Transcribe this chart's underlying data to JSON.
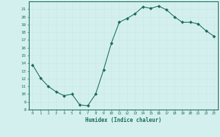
{
  "x": [
    0,
    1,
    2,
    3,
    4,
    5,
    6,
    7,
    8,
    9,
    10,
    11,
    12,
    13,
    14,
    15,
    16,
    17,
    18,
    19,
    20,
    21,
    22,
    23
  ],
  "y": [
    13.8,
    12.1,
    11.0,
    10.3,
    9.8,
    10.0,
    8.6,
    8.5,
    10.0,
    13.1,
    16.6,
    19.3,
    19.8,
    20.4,
    21.3,
    21.1,
    21.4,
    20.9,
    20.0,
    19.3,
    19.3,
    19.1,
    18.2,
    17.5
  ],
  "xlabel": "Humidex (Indice chaleur)",
  "xlim": [
    -0.5,
    23.5
  ],
  "ylim": [
    8,
    22
  ],
  "yticks": [
    8,
    9,
    10,
    11,
    12,
    13,
    14,
    15,
    16,
    17,
    18,
    19,
    20,
    21
  ],
  "xticks": [
    0,
    1,
    2,
    3,
    4,
    5,
    6,
    7,
    8,
    9,
    10,
    11,
    12,
    13,
    14,
    15,
    16,
    17,
    18,
    19,
    20,
    21,
    22,
    23
  ],
  "line_color": "#1a6b5a",
  "marker_color": "#1a6b5a",
  "bg_color": "#d4f0ee",
  "grid_major_color": "#c8e8e4",
  "grid_minor_color": "#daf2f0",
  "tick_label_color": "#1a6b5a",
  "xlabel_color": "#1a6b5a",
  "spine_color": "#1a6b5a"
}
